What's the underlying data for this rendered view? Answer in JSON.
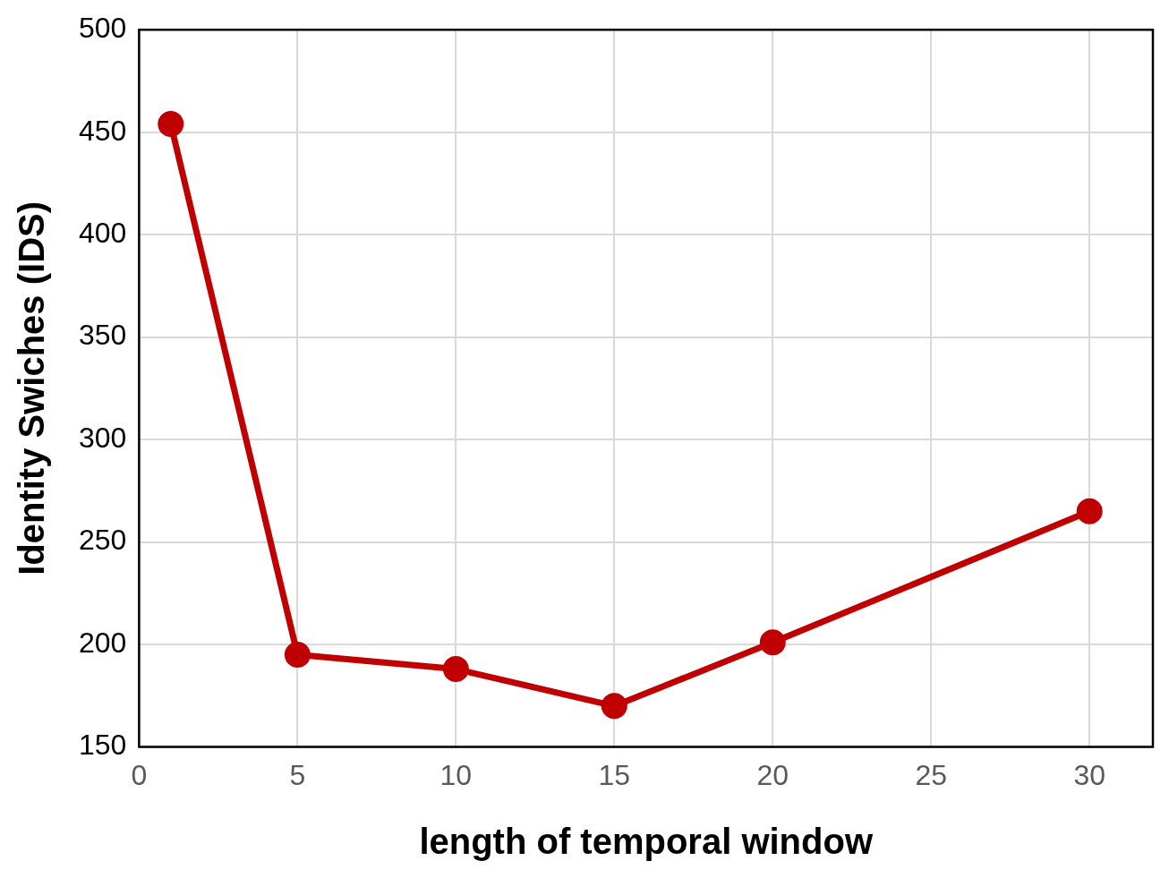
{
  "chart_data": {
    "type": "line",
    "xlabel": "length of temporal window",
    "ylabel": "Identity Swiches (IDS)",
    "x": [
      1,
      5,
      10,
      15,
      20,
      30
    ],
    "series": [
      {
        "color": "#c00000",
        "values": [
          454,
          195,
          188,
          170,
          201,
          265
        ]
      }
    ],
    "xlim": [
      0,
      32
    ],
    "xticks": [
      0,
      5,
      10,
      15,
      20,
      25,
      30
    ],
    "ylim": [
      150,
      500
    ],
    "yticks": [
      150,
      200,
      250,
      300,
      350,
      400,
      450,
      500
    ],
    "grid": true,
    "legend": false,
    "marker": "circle",
    "line_style": "solid"
  }
}
